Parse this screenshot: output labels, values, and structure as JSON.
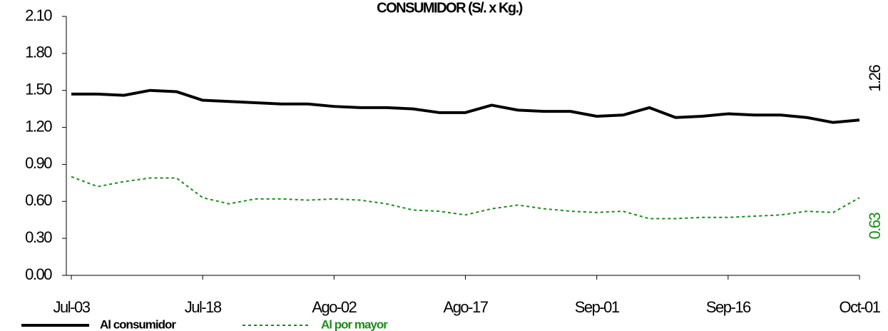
{
  "chart_data": {
    "type": "line",
    "title": "CONSUMIDOR   (S/. x Kg.)",
    "categories": [
      "Jul-03",
      null,
      null,
      null,
      null,
      "Jul-18",
      null,
      null,
      null,
      null,
      "Ago-02",
      null,
      null,
      null,
      null,
      "Ago-17",
      null,
      null,
      null,
      null,
      "Sep-01",
      null,
      null,
      null,
      null,
      "Sep-16",
      null,
      null,
      null,
      null,
      "Oct-01"
    ],
    "series": [
      {
        "name": "Al consumidor",
        "color": "#000000",
        "style": "solid",
        "values": [
          1.47,
          1.47,
          1.46,
          1.5,
          1.49,
          1.42,
          1.41,
          1.4,
          1.39,
          1.39,
          1.37,
          1.36,
          1.36,
          1.35,
          1.32,
          1.32,
          1.38,
          1.34,
          1.33,
          1.33,
          1.29,
          1.3,
          1.36,
          1.28,
          1.29,
          1.31,
          1.3,
          1.3,
          1.28,
          1.24,
          1.26
        ]
      },
      {
        "name": "Al por mayor",
        "color": "#1a8c1a",
        "style": "dashed",
        "values": [
          0.8,
          0.72,
          0.76,
          0.79,
          0.79,
          0.63,
          0.58,
          0.62,
          0.62,
          0.61,
          0.62,
          0.61,
          0.58,
          0.53,
          0.52,
          0.49,
          0.54,
          0.57,
          0.54,
          0.52,
          0.51,
          0.52,
          0.46,
          0.46,
          0.47,
          0.47,
          0.48,
          0.49,
          0.52,
          0.51,
          0.63
        ]
      }
    ],
    "ylim": [
      0,
      2.1
    ],
    "yticks": [
      {
        "value": 0,
        "label": "0.00"
      },
      {
        "value": 0.3,
        "label": "0.30"
      },
      {
        "value": 0.6,
        "label": "0.60"
      },
      {
        "value": 0.9,
        "label": "0.90"
      },
      {
        "value": 1.2,
        "label": "1.20"
      },
      {
        "value": 1.5,
        "label": "1.50"
      },
      {
        "value": 1.8,
        "label": "1.80"
      },
      {
        "value": 2.1,
        "label": "2.10"
      }
    ],
    "grid": false
  }
}
